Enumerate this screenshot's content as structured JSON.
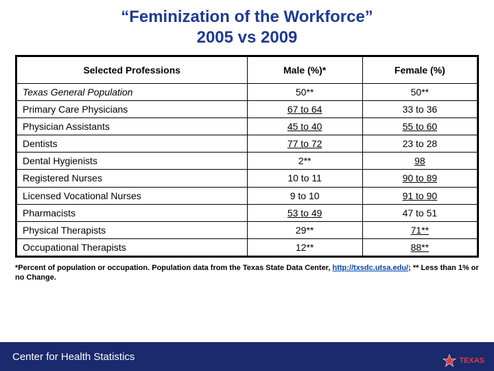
{
  "title_line1": "“Feminization of the Workforce”",
  "title_line2": "2005 vs 2009",
  "columns": {
    "profession": "Selected Professions",
    "male": "Male (%)*",
    "female": "Female (%)"
  },
  "rows": [
    {
      "profession": "Texas General Population",
      "italic": true,
      "male": {
        "text": "50**",
        "underline": false
      },
      "female": {
        "text": "50**",
        "underline": false
      }
    },
    {
      "profession": "Primary Care Physicians",
      "italic": false,
      "male": {
        "text": "67 to 64",
        "underline": true
      },
      "female": {
        "text": "33 to 36",
        "underline": false
      }
    },
    {
      "profession": "Physician Assistants",
      "italic": false,
      "male": {
        "text": "45 to 40",
        "underline": true
      },
      "female": {
        "text": "55 to 60",
        "underline": true
      }
    },
    {
      "profession": "Dentists",
      "italic": false,
      "male": {
        "text": "77 to 72",
        "underline": true
      },
      "female": {
        "text": "23 to 28",
        "underline": false
      }
    },
    {
      "profession": "Dental Hygienists",
      "italic": false,
      "male": {
        "text": "2**",
        "underline": false
      },
      "female": {
        "text": "98",
        "underline": true
      }
    },
    {
      "profession": "Registered Nurses",
      "italic": false,
      "male": {
        "text": "10 to 11",
        "underline": false
      },
      "female": {
        "text": "90 to 89",
        "underline": true
      }
    },
    {
      "profession": "Licensed Vocational Nurses",
      "italic": false,
      "male": {
        "text": "9 to 10",
        "underline": false
      },
      "female": {
        "text": "91 to 90",
        "underline": true
      }
    },
    {
      "profession": "Pharmacists",
      "italic": false,
      "male": {
        "text": "53 to 49",
        "underline": true
      },
      "female": {
        "text": "47 to 51",
        "underline": false
      }
    },
    {
      "profession": "Physical Therapists",
      "italic": false,
      "male": {
        "text": "29**",
        "underline": false
      },
      "female": {
        "text": "71**",
        "underline": true
      }
    },
    {
      "profession": "Occupational Therapists",
      "italic": false,
      "male": {
        "text": "12**",
        "underline": false
      },
      "female": {
        "text": "88**",
        "underline": true
      }
    }
  ],
  "footnote_before": "*Percent of population or occupation.  Population data from the Texas State Data Center,  ",
  "footnote_link_text": "http://txsdc.utsa.edu/",
  "footnote_after": ";  ** Less than 1% or no Change.",
  "footer_text": "Center for Health Statistics",
  "logo_brand": "TEXAS",
  "colors": {
    "title": "#1f3a93",
    "footer_bg": "#1a2a6c",
    "link": "#0645ad",
    "border": "#000000",
    "logo_red": "#e03a3e"
  }
}
